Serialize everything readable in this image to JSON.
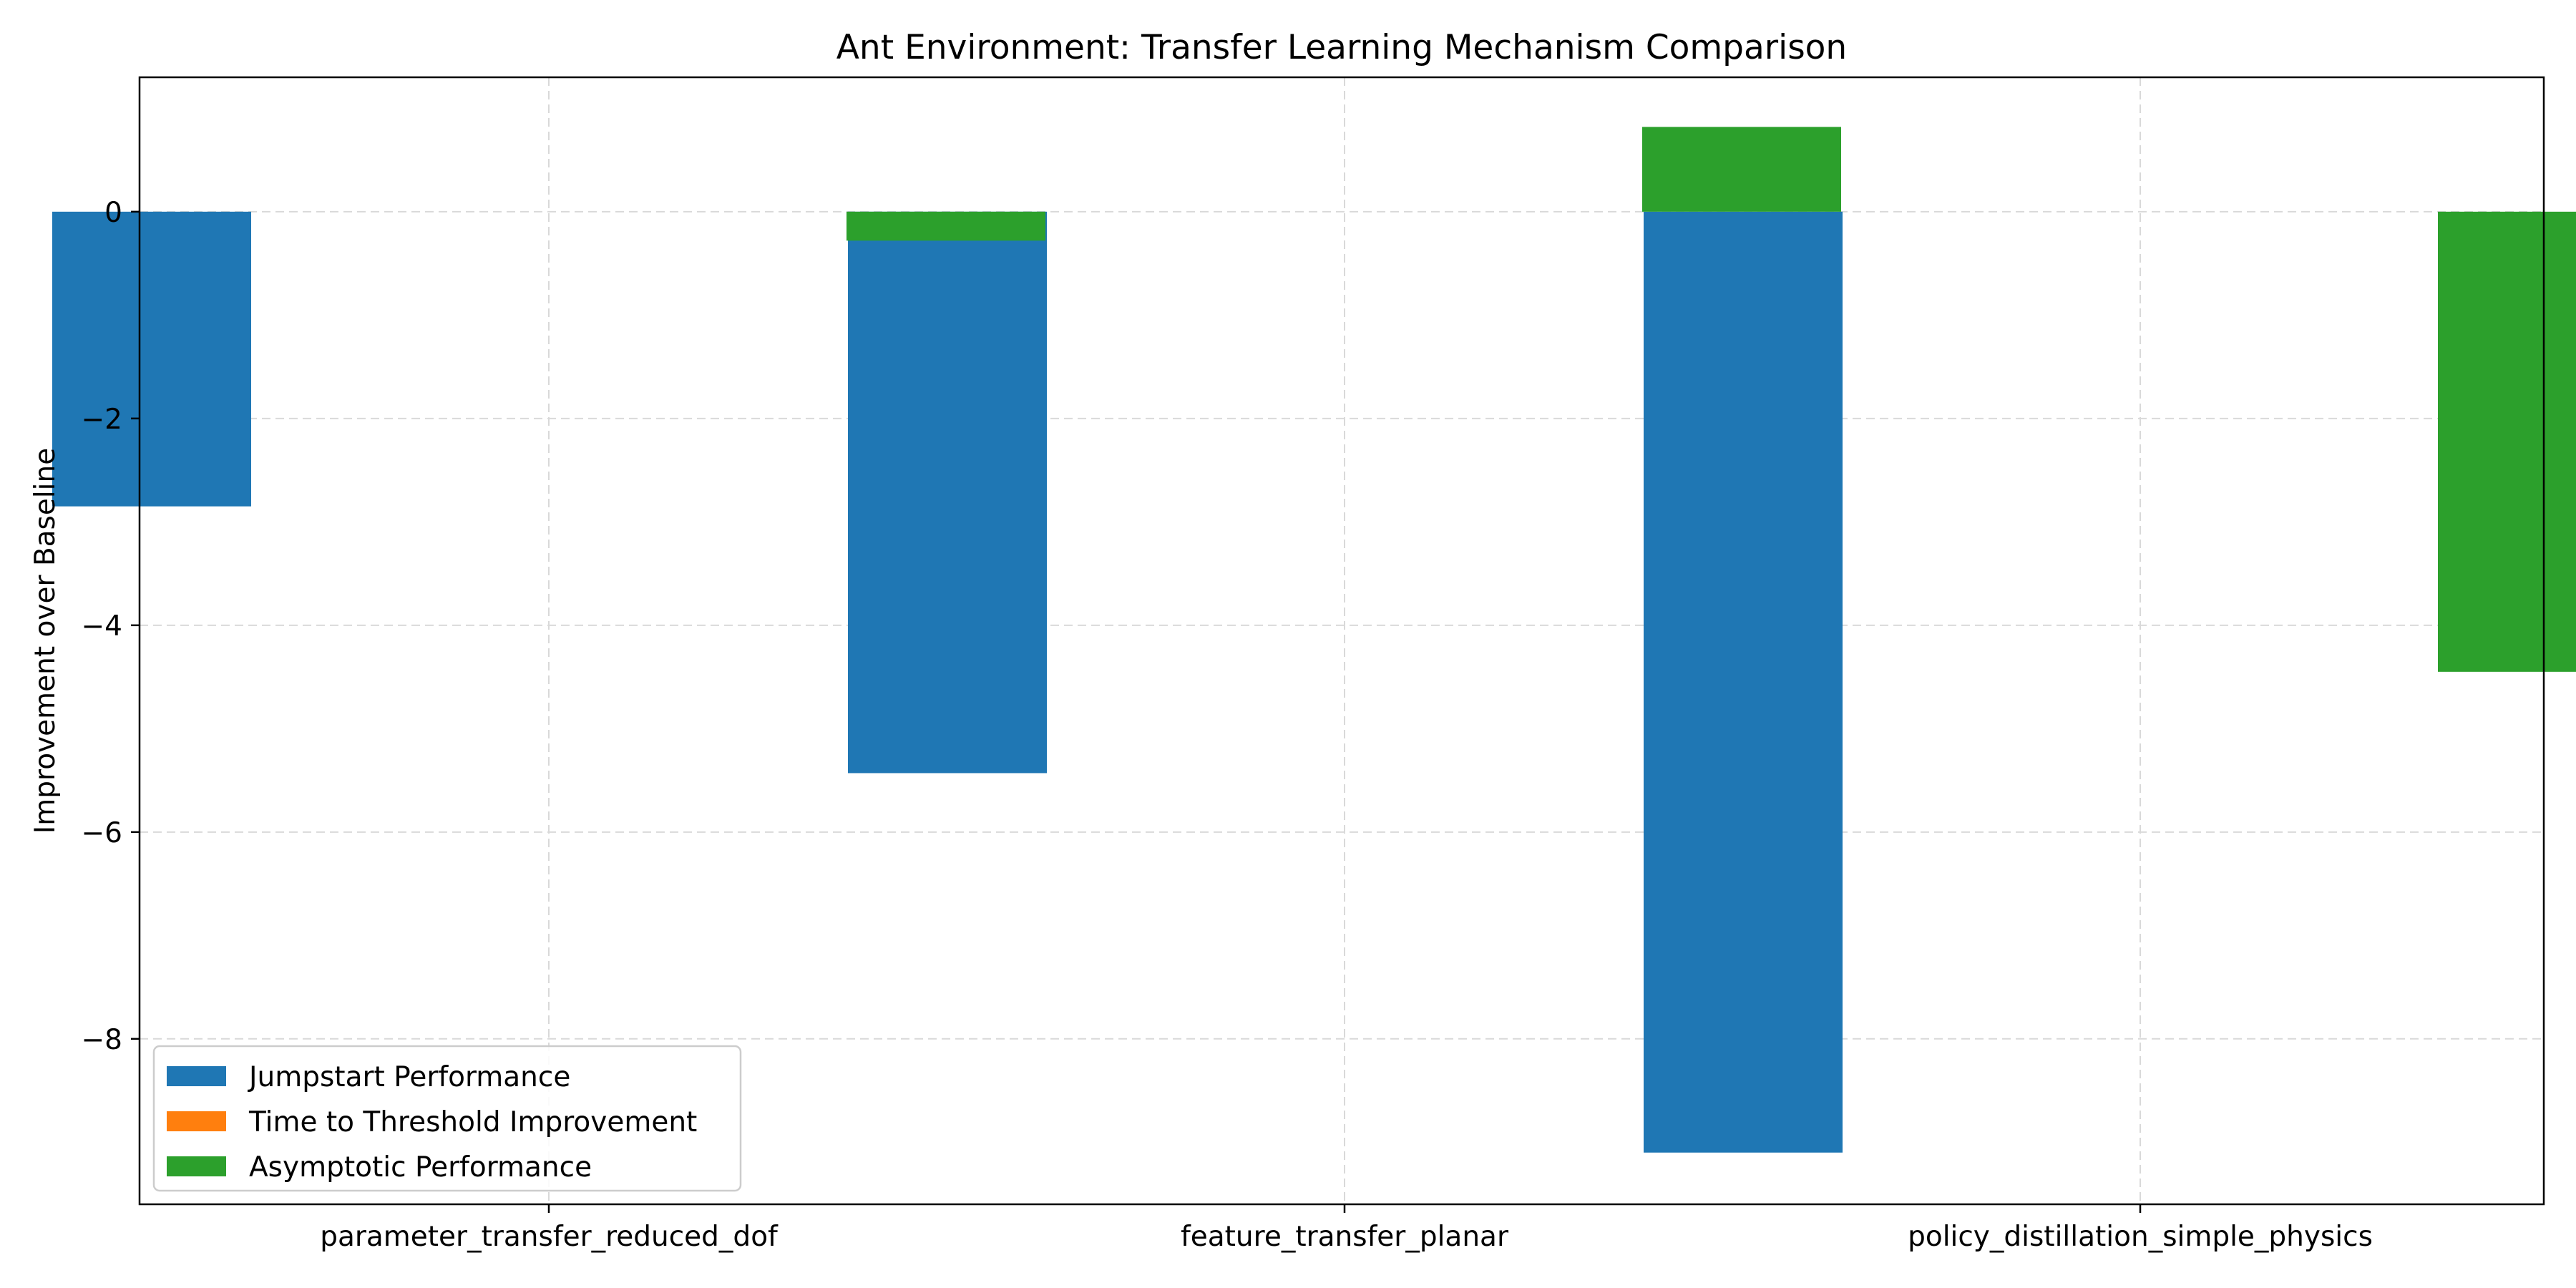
{
  "chart_data": {
    "type": "bar",
    "title": "Ant Environment: Transfer Learning Mechanism Comparison",
    "xlabel": "",
    "ylabel": "Improvement over Baseline",
    "categories": [
      "parameter_transfer_reduced_dof",
      "feature_transfer_planar",
      "policy_distillation_simple_physics"
    ],
    "series": [
      {
        "name": "Jumpstart Performance",
        "color": "#1f77b4",
        "values": [
          -2.85,
          -5.43,
          -9.1
        ]
      },
      {
        "name": "Time to Threshold Improvement",
        "color": "#ff7f0e",
        "values": [
          0,
          0,
          0
        ]
      },
      {
        "name": "Asymptotic Performance",
        "color": "#2ca02c",
        "values": [
          -0.28,
          0.82,
          -4.45
        ]
      }
    ],
    "ylim": [
      -9.6,
      1.3
    ],
    "yticks": [
      0,
      -2,
      -4,
      -6,
      -8
    ],
    "ytick_labels": [
      "0",
      "−2",
      "−4",
      "−6",
      "−8"
    ],
    "grid": true,
    "legend_placement": "lower-left"
  }
}
